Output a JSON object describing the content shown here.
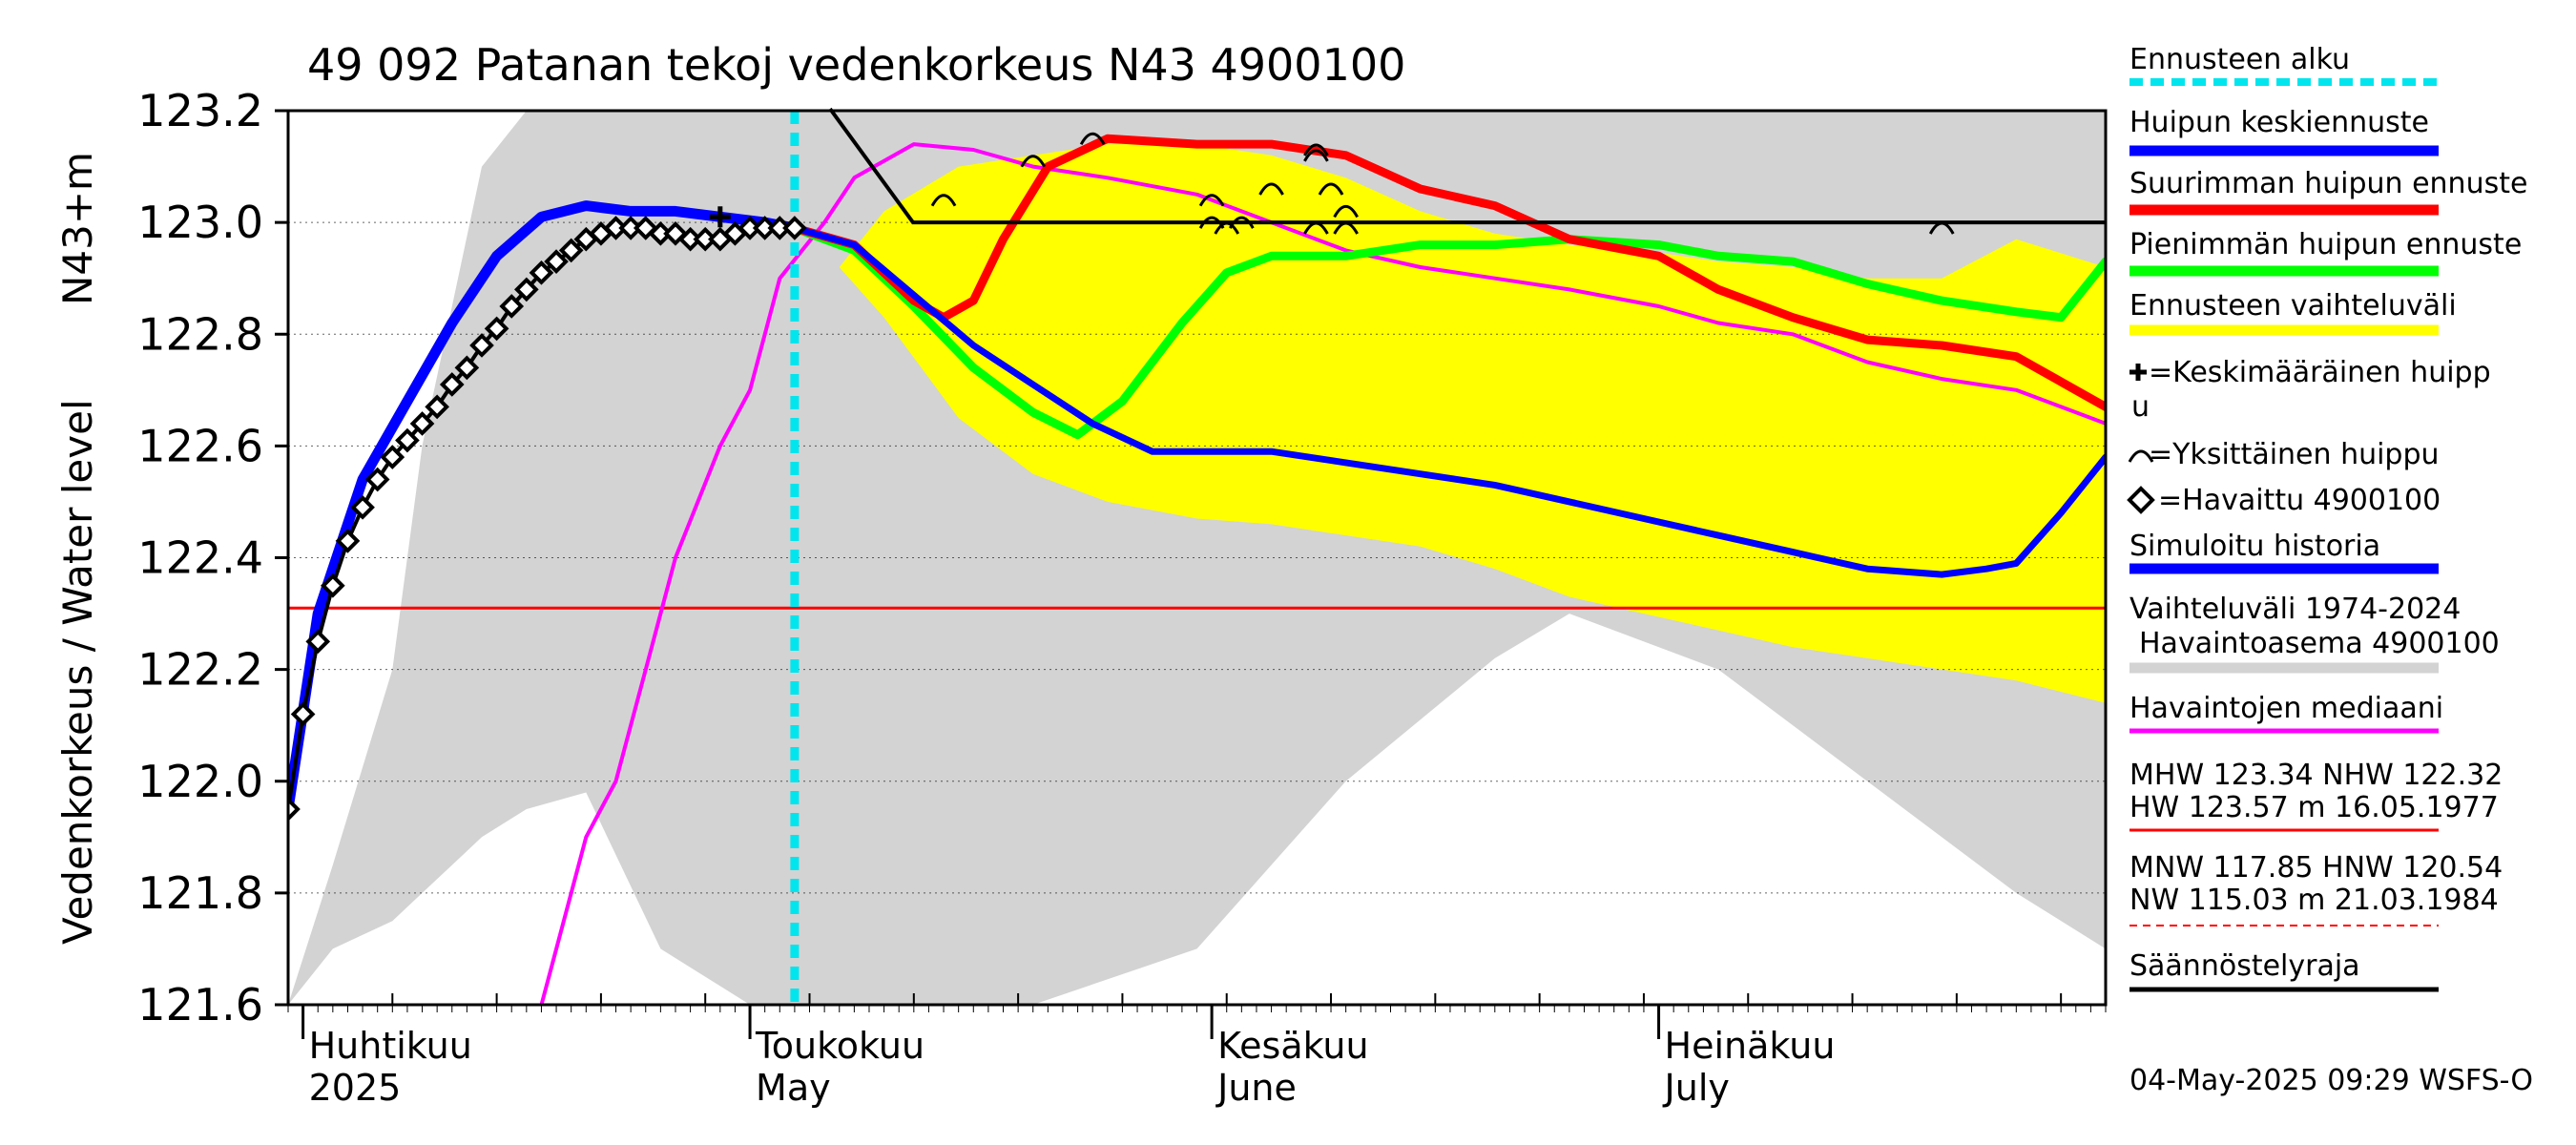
{
  "chart_data": {
    "type": "line",
    "title": "49 092 Patanan tekoj vedenkorkeus N43 4900100",
    "ylabel": "Vedenkorkeus / Water level",
    "yunit": "N43+m",
    "ylim": [
      121.6,
      123.2
    ],
    "y_ticks": [
      "121.6",
      "121.8",
      "122.0",
      "122.2",
      "122.4",
      "122.6",
      "122.8",
      "123.0",
      "123.2"
    ],
    "x_range": [
      "2025-03-31",
      "2025-07-31"
    ],
    "month_labels": [
      {
        "fi": "Huhtikuu",
        "en": "2025",
        "date": "2025-04-01"
      },
      {
        "fi": "Toukokuu",
        "en": "May",
        "date": "2025-05-01"
      },
      {
        "fi": "Kesäkuu",
        "en": "June",
        "date": "2025-06-01"
      },
      {
        "fi": "Heinäkuu",
        "en": "July",
        "date": "2025-07-01"
      }
    ],
    "forecast_start": "2025-05-04",
    "regulation_limit": 122.31,
    "colors": {
      "history_band": "#d3d3d3",
      "forecast_band": "#ffff00",
      "mean_peak": "#0000ff",
      "max_peak": "#ff0000",
      "min_peak": "#00ff00",
      "median": "#ff00ff",
      "simulated": "#0000ff",
      "forecast_start": "#00e5ee",
      "limit": "#ff0000"
    },
    "history_band": {
      "x": [
        "2025-03-31",
        "2025-04-03",
        "2025-04-07",
        "2025-04-09",
        "2025-04-11",
        "2025-04-13",
        "2025-04-16",
        "2025-04-20",
        "2025-04-25",
        "2025-05-01",
        "2025-05-10",
        "2025-05-20",
        "2025-05-31",
        "2025-06-10",
        "2025-06-20",
        "2025-06-25",
        "2025-07-05",
        "2025-07-15",
        "2025-07-25",
        "2025-07-31"
      ],
      "upper": [
        121.6,
        121.85,
        122.2,
        122.6,
        122.85,
        123.1,
        123.2,
        123.2,
        123.2,
        123.2,
        123.2,
        123.2,
        123.2,
        123.2,
        123.2,
        123.2,
        123.2,
        123.2,
        123.2,
        123.2
      ],
      "lower": [
        121.6,
        121.7,
        121.75,
        121.8,
        121.85,
        121.9,
        121.95,
        121.98,
        121.7,
        121.6,
        121.6,
        121.6,
        121.7,
        122.0,
        122.22,
        122.3,
        122.2,
        122.0,
        121.8,
        121.7
      ]
    },
    "forecast_band": {
      "x": [
        "2025-05-03",
        "2025-05-07",
        "2025-05-10",
        "2025-05-15",
        "2025-05-20",
        "2025-05-25",
        "2025-05-31",
        "2025-06-05",
        "2025-06-10",
        "2025-06-15",
        "2025-06-20",
        "2025-06-25",
        "2025-06-30",
        "2025-07-05",
        "2025-07-10",
        "2025-07-15",
        "2025-07-20",
        "2025-07-25",
        "2025-07-31"
      ],
      "upper": [
        122.98,
        122.92,
        123.02,
        123.1,
        123.12,
        123.14,
        123.14,
        123.12,
        123.08,
        123.02,
        122.98,
        122.96,
        122.95,
        122.93,
        122.92,
        122.9,
        122.9,
        122.97,
        122.92
      ],
      "lower": [
        122.98,
        122.92,
        122.83,
        122.65,
        122.55,
        122.5,
        122.47,
        122.46,
        122.44,
        122.42,
        122.38,
        122.33,
        122.3,
        122.27,
        122.24,
        122.22,
        122.2,
        122.18,
        122.14
      ]
    },
    "series": [
      {
        "name": "Huipun keskiennuste",
        "x": [
          "2025-05-04",
          "2025-05-08",
          "2025-05-12",
          "2025-05-16",
          "2025-05-20",
          "2025-05-24",
          "2025-05-28",
          "2025-06-01",
          "2025-06-05",
          "2025-06-10",
          "2025-06-15",
          "2025-06-20",
          "2025-06-25",
          "2025-06-30",
          "2025-07-05",
          "2025-07-10",
          "2025-07-15",
          "2025-07-20",
          "2025-07-23",
          "2025-07-25",
          "2025-07-28",
          "2025-07-31"
        ],
        "values": [
          122.99,
          122.96,
          122.87,
          122.78,
          122.71,
          122.64,
          122.59,
          122.59,
          122.59,
          122.57,
          122.55,
          122.53,
          122.5,
          122.47,
          122.44,
          122.41,
          122.38,
          122.37,
          122.38,
          122.39,
          122.48,
          122.58
        ]
      },
      {
        "name": "Suurimman huipun ennuste",
        "x": [
          "2025-05-04",
          "2025-05-08",
          "2025-05-12",
          "2025-05-14",
          "2025-05-16",
          "2025-05-18",
          "2025-05-21",
          "2025-05-25",
          "2025-05-31",
          "2025-06-05",
          "2025-06-10",
          "2025-06-15",
          "2025-06-20",
          "2025-06-25",
          "2025-07-01",
          "2025-07-05",
          "2025-07-10",
          "2025-07-15",
          "2025-07-20",
          "2025-07-25",
          "2025-07-31"
        ],
        "values": [
          122.99,
          122.96,
          122.86,
          122.83,
          122.86,
          122.97,
          123.1,
          123.15,
          123.14,
          123.14,
          123.12,
          123.06,
          123.03,
          122.97,
          122.94,
          122.88,
          122.83,
          122.79,
          122.78,
          122.76,
          122.67
        ]
      },
      {
        "name": "Pienimmän huipun ennuste",
        "x": [
          "2025-05-04",
          "2025-05-08",
          "2025-05-12",
          "2025-05-16",
          "2025-05-20",
          "2025-05-23",
          "2025-05-26",
          "2025-05-30",
          "2025-06-02",
          "2025-06-05",
          "2025-06-10",
          "2025-06-15",
          "2025-06-20",
          "2025-06-25",
          "2025-07-01",
          "2025-07-05",
          "2025-07-10",
          "2025-07-15",
          "2025-07-20",
          "2025-07-25",
          "2025-07-28",
          "2025-07-31"
        ],
        "values": [
          122.99,
          122.95,
          122.85,
          122.74,
          122.66,
          122.62,
          122.68,
          122.82,
          122.91,
          122.94,
          122.94,
          122.96,
          122.96,
          122.97,
          122.96,
          122.94,
          122.93,
          122.89,
          122.86,
          122.84,
          122.83,
          122.93
        ]
      },
      {
        "name": "Havaintojen mediaani",
        "x": [
          "2025-04-17",
          "2025-04-20",
          "2025-04-22",
          "2025-04-24",
          "2025-04-26",
          "2025-04-29",
          "2025-05-01",
          "2025-05-03",
          "2025-05-06",
          "2025-05-08",
          "2025-05-12",
          "2025-05-16",
          "2025-05-20",
          "2025-05-25",
          "2025-05-31",
          "2025-06-05",
          "2025-06-10",
          "2025-06-15",
          "2025-06-20",
          "2025-06-25",
          "2025-07-01",
          "2025-07-05",
          "2025-07-10",
          "2025-07-15",
          "2025-07-20",
          "2025-07-25",
          "2025-07-31"
        ],
        "values": [
          121.6,
          121.9,
          122.0,
          122.2,
          122.4,
          122.6,
          122.7,
          122.9,
          123.0,
          123.08,
          123.14,
          123.13,
          123.1,
          123.08,
          123.05,
          123.0,
          122.95,
          122.92,
          122.9,
          122.88,
          122.85,
          122.82,
          122.8,
          122.75,
          122.72,
          122.7,
          122.64
        ]
      },
      {
        "name": "Simuloitu historia",
        "x": [
          "2025-03-31",
          "2025-04-02",
          "2025-04-05",
          "2025-04-08",
          "2025-04-11",
          "2025-04-14",
          "2025-04-17",
          "2025-04-20",
          "2025-04-23",
          "2025-04-26",
          "2025-04-29",
          "2025-05-02",
          "2025-05-04"
        ],
        "values": [
          121.95,
          122.3,
          122.54,
          122.68,
          122.82,
          122.94,
          123.01,
          123.03,
          123.02,
          123.02,
          123.01,
          123.0,
          122.99
        ]
      },
      {
        "name": "Havaittu 4900100",
        "x": [
          "2025-03-31",
          "2025-04-01",
          "2025-04-02",
          "2025-04-03",
          "2025-04-04",
          "2025-04-05",
          "2025-04-06",
          "2025-04-07",
          "2025-04-08",
          "2025-04-09",
          "2025-04-10",
          "2025-04-11",
          "2025-04-12",
          "2025-04-13",
          "2025-04-14",
          "2025-04-15",
          "2025-04-16",
          "2025-04-17",
          "2025-04-18",
          "2025-04-19",
          "2025-04-20",
          "2025-04-21",
          "2025-04-22",
          "2025-04-23",
          "2025-04-24",
          "2025-04-25",
          "2025-04-26",
          "2025-04-27",
          "2025-04-28",
          "2025-04-29",
          "2025-04-30",
          "2025-05-01",
          "2025-05-02",
          "2025-05-03",
          "2025-05-04"
        ],
        "values": [
          121.95,
          122.12,
          122.25,
          122.35,
          122.43,
          122.49,
          122.54,
          122.58,
          122.61,
          122.64,
          122.67,
          122.71,
          122.74,
          122.78,
          122.81,
          122.85,
          122.88,
          122.91,
          122.93,
          122.95,
          122.97,
          122.98,
          122.99,
          122.99,
          122.99,
          122.98,
          122.98,
          122.97,
          122.97,
          122.97,
          122.98,
          122.99,
          122.99,
          122.99,
          122.99
        ]
      }
    ],
    "mean_peak_marker": {
      "x": "2025-04-29",
      "y": 123.01
    },
    "individual_peaks": [
      {
        "x": "2025-05-14",
        "y": 123.04
      },
      {
        "x": "2025-05-20",
        "y": 123.11
      },
      {
        "x": "2025-05-24",
        "y": 123.15
      },
      {
        "x": "2025-06-01",
        "y": 123.04
      },
      {
        "x": "2025-06-01",
        "y": 123.0
      },
      {
        "x": "2025-06-02",
        "y": 122.99
      },
      {
        "x": "2025-06-03",
        "y": 123.0
      },
      {
        "x": "2025-06-05",
        "y": 123.06
      },
      {
        "x": "2025-06-08",
        "y": 123.13
      },
      {
        "x": "2025-06-08",
        "y": 123.12
      },
      {
        "x": "2025-06-08",
        "y": 122.99
      },
      {
        "x": "2025-06-09",
        "y": 123.06
      },
      {
        "x": "2025-06-10",
        "y": 123.02
      },
      {
        "x": "2025-06-10",
        "y": 122.99
      },
      {
        "x": "2025-07-20",
        "y": 122.99
      }
    ],
    "legend": [
      {
        "label": "Ennusteen alku",
        "kind": "dashed",
        "color": "#00e5ee"
      },
      {
        "label": "Huipun keskiennuste",
        "kind": "line",
        "color": "#0000ff"
      },
      {
        "label": "Suurimman huipun ennuste",
        "kind": "line",
        "color": "#ff0000"
      },
      {
        "label": "Pienimmän huipun ennuste",
        "kind": "line",
        "color": "#00ff00"
      },
      {
        "label": "Ennusteen vaihteluväli",
        "kind": "line",
        "color": "#ffff00"
      },
      {
        "label": "=Keskimääräinen huippu",
        "kind": "symbol",
        "symbol": "plus"
      },
      {
        "label": "=Yksittäinen huippu",
        "kind": "symbol",
        "symbol": "arc"
      },
      {
        "label": "=Havaittu 4900100",
        "kind": "symbol",
        "symbol": "diamond"
      },
      {
        "label": "Simuloitu historia",
        "kind": "line",
        "color": "#0000ff"
      },
      {
        "label": "Vaihteluväli 1974-2024 Havaintoasema 4900100",
        "kind": "line",
        "color": "#d3d3d3"
      },
      {
        "label": "Havaintojen mediaani",
        "kind": "line",
        "color": "#ff00ff"
      }
    ],
    "stats": {
      "mhw": "MHW 123.34 NHW 122.32",
      "hw": "HW 123.57 m 16.05.1977",
      "mnw": "MNW 117.85 HNW 120.54",
      "nw": "NW 115.03 m 21.03.1984",
      "regulation_label": "Säännöstelyraja"
    },
    "timestamp": "04-May-2025 09:29 WSFS-O"
  }
}
